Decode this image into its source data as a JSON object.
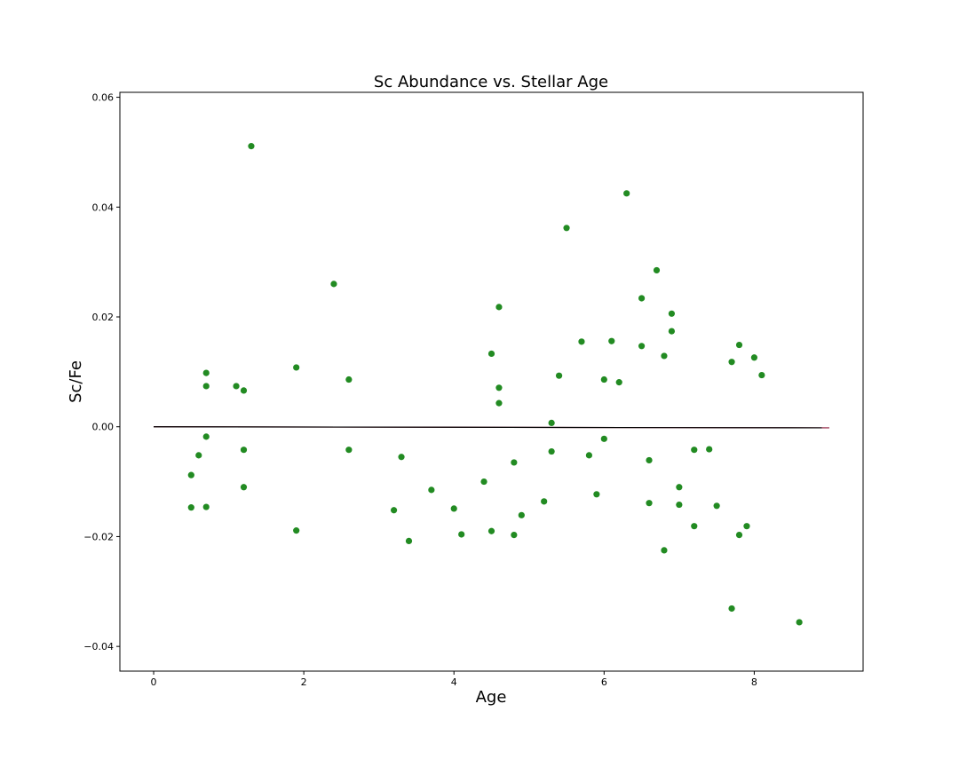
{
  "chart_data": {
    "type": "scatter",
    "title": "Sc Abundance vs. Stellar Age",
    "xlabel": "Age",
    "ylabel": "Sc/Fe",
    "xlim": [
      -0.45,
      9.45
    ],
    "ylim": [
      -0.0445,
      0.0609
    ],
    "x_ticks": [
      0,
      2,
      4,
      6,
      8
    ],
    "y_ticks": [
      -0.04,
      -0.02,
      0.0,
      0.02,
      0.04,
      0.06
    ],
    "x_tick_labels": [
      "0",
      "2",
      "4",
      "6",
      "8"
    ],
    "y_tick_labels": [
      "−0.04",
      "−0.02",
      "0.00",
      "0.02",
      "0.04",
      "0.06"
    ],
    "grid": false,
    "point_color": "#228b22",
    "points": {
      "x": [
        0.5,
        0.5,
        0.6,
        0.7,
        0.7,
        0.7,
        0.7,
        1.1,
        1.2,
        1.2,
        1.2,
        1.3,
        1.9,
        1.9,
        2.4,
        2.6,
        2.6,
        3.2,
        3.3,
        3.4,
        3.7,
        4.0,
        4.1,
        4.4,
        4.5,
        4.5,
        4.6,
        4.6,
        4.6,
        4.8,
        4.8,
        4.9,
        5.2,
        5.3,
        5.3,
        5.4,
        5.5,
        5.7,
        5.8,
        5.9,
        6.0,
        6.0,
        6.1,
        6.2,
        6.3,
        6.5,
        6.5,
        6.6,
        6.6,
        6.7,
        6.8,
        6.8,
        6.9,
        6.9,
        7.0,
        7.0,
        7.2,
        7.2,
        7.4,
        7.5,
        7.7,
        7.7,
        7.8,
        7.8,
        7.9,
        8.0,
        8.1,
        8.6
      ],
      "y": [
        -0.0088,
        -0.0147,
        -0.0052,
        0.0098,
        0.0074,
        -0.0018,
        -0.0146,
        0.0074,
        0.0066,
        -0.0042,
        -0.011,
        0.0511,
        0.0108,
        -0.0189,
        0.026,
        0.0086,
        -0.0042,
        -0.0152,
        -0.0055,
        -0.0208,
        -0.0115,
        -0.0149,
        -0.0196,
        -0.01,
        0.0133,
        -0.019,
        0.0218,
        0.0071,
        0.0043,
        -0.0065,
        -0.0197,
        -0.0161,
        -0.0136,
        0.0007,
        -0.0045,
        0.0093,
        0.0362,
        0.0155,
        -0.0052,
        -0.0123,
        0.0086,
        -0.0022,
        0.0156,
        0.0081,
        0.0425,
        0.0234,
        0.0147,
        -0.0061,
        -0.0139,
        0.0285,
        0.0129,
        -0.0225,
        0.0206,
        0.0174,
        -0.011,
        -0.0142,
        -0.0042,
        -0.0181,
        -0.0041,
        -0.0144,
        0.0118,
        -0.0331,
        0.0149,
        -0.0197,
        -0.0181,
        0.0126,
        0.0094,
        -0.0356
      ]
    },
    "fit_lines": [
      {
        "color": "#8b1a3a",
        "x": [
          0.0,
          9.0
        ],
        "y": [
          0.0,
          -0.0002
        ]
      },
      {
        "color": "#000000",
        "x": [
          0.0,
          8.9
        ],
        "y": [
          0.0,
          -0.0002
        ]
      }
    ]
  }
}
